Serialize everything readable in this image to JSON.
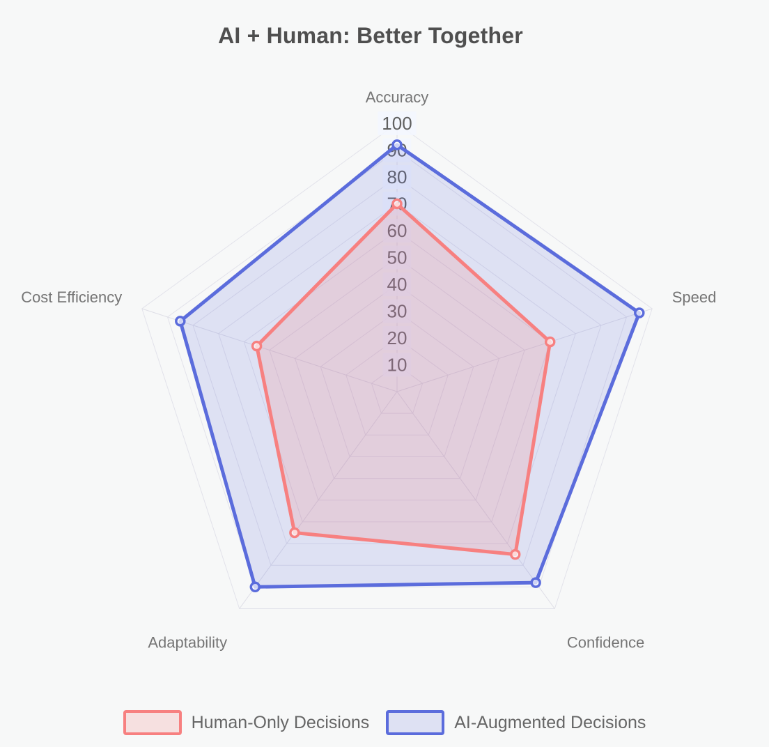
{
  "title": "AI + Human: Better Together",
  "colors": {
    "background": "#f7f8f8",
    "grid_line": "#e2e2ea",
    "spoke_line": "#dedee6",
    "tick_text": "#606060",
    "tick_backdrop": "rgba(243,247,255,0.85)",
    "axis_label_text": "#757575",
    "title_text": "#4f4f4f",
    "legend_text": "#666666",
    "human_line": "#f78080",
    "human_fill": "rgba(247,128,128,0.20)",
    "ai_line": "#5b6cdc",
    "ai_fill": "rgba(91,108,220,0.16)"
  },
  "chart_data": {
    "type": "radar",
    "title": "AI + Human: Better Together",
    "categories": [
      "Accuracy",
      "Speed",
      "Confidence",
      "Adaptability",
      "Cost Efficiency"
    ],
    "series": [
      {
        "name": "Human-Only Decisions",
        "values": [
          70,
          60,
          75,
          65,
          55
        ],
        "line_color": "#f78080",
        "fill_color": "rgba(247,128,128,0.20)",
        "point_fill": "rgba(255,255,255,0.70)"
      },
      {
        "name": "AI-Augmented Decisions",
        "values": [
          92,
          95,
          88,
          90,
          85
        ],
        "line_color": "#5b6cdc",
        "fill_color": "rgba(91,108,220,0.16)",
        "point_fill": "rgba(255,255,255,0.70)"
      }
    ],
    "scale": {
      "min": 0,
      "max": 100,
      "step": 10,
      "tick_labels": [
        "10",
        "20",
        "30",
        "40",
        "50",
        "60",
        "70",
        "80",
        "90",
        "100"
      ]
    },
    "grid": true,
    "legend_position": "bottom"
  },
  "legend": {
    "items": [
      {
        "label": "Human-Only Decisions"
      },
      {
        "label": "AI-Augmented Decisions"
      }
    ]
  }
}
